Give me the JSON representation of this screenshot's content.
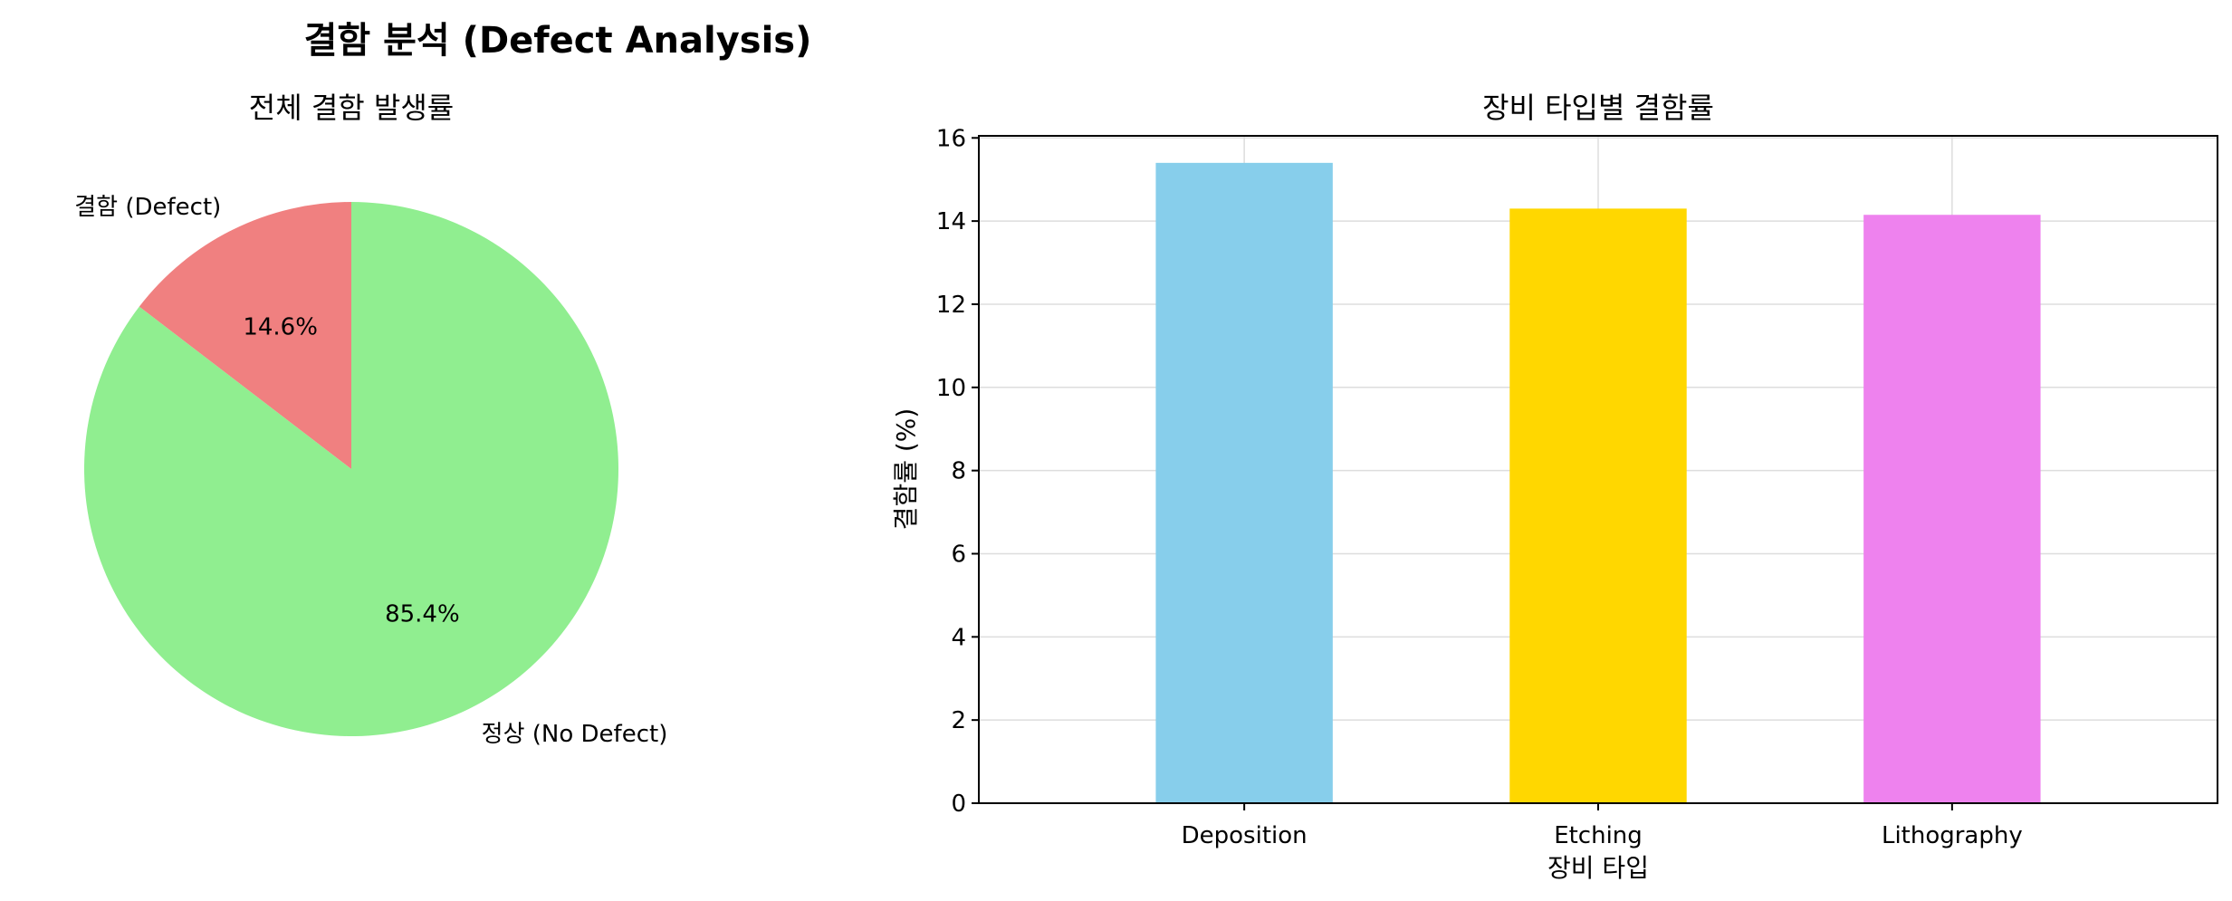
{
  "figure": {
    "title": "결함 분석 (Defect Analysis)"
  },
  "chart_data": [
    {
      "type": "pie",
      "title": "전체 결함 발생률",
      "labels": [
        "결함 (Defect)",
        "정상 (No Defect)"
      ],
      "values": [
        14.6,
        85.4
      ],
      "pct_labels": [
        "14.6%",
        "85.4%"
      ],
      "colors": [
        "#f08080",
        "#90ee90"
      ],
      "start_angle_deg": 90,
      "direction": "counterclockwise"
    },
    {
      "type": "bar",
      "title": "장비 타입별 결함률",
      "xlabel": "장비 타입",
      "ylabel": "결함률 (%)",
      "categories": [
        "Deposition",
        "Etching",
        "Lithography"
      ],
      "values": [
        15.4,
        14.3,
        14.15
      ],
      "colors": [
        "#87ceeb",
        "#ffd700",
        "#ee82ee"
      ],
      "ylim": [
        0,
        16
      ],
      "yticks": [
        0,
        2,
        4,
        6,
        8,
        10,
        12,
        14,
        16
      ],
      "grid": true
    }
  ]
}
